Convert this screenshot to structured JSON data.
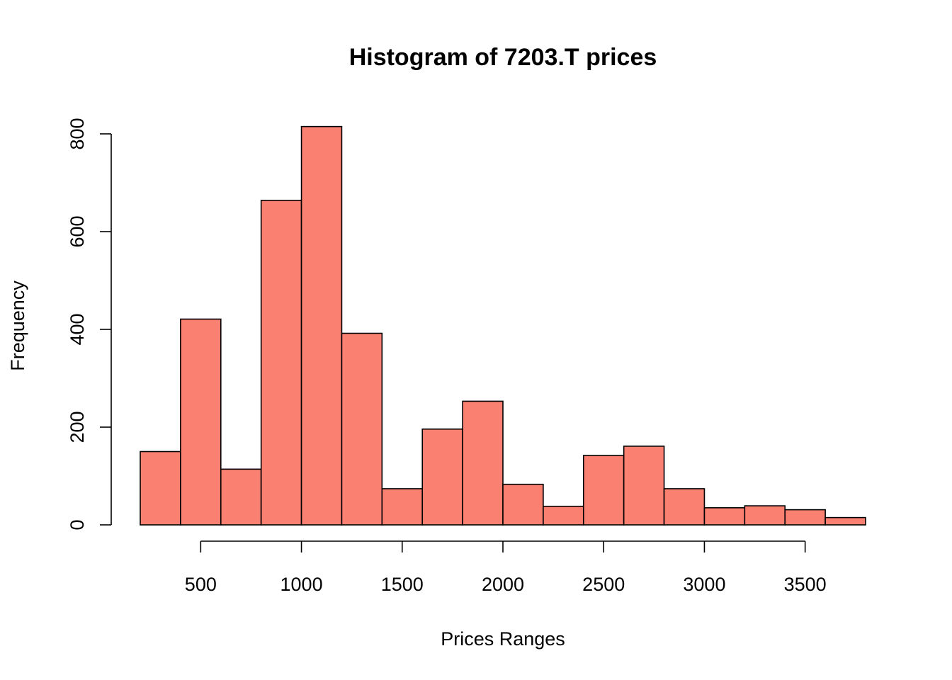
{
  "chart_data": {
    "type": "bar",
    "title": "Histogram of 7203.T prices",
    "xlabel": "Prices Ranges",
    "ylabel": "Frequency",
    "bin_edges": [
      200,
      400,
      600,
      800,
      1000,
      1200,
      1400,
      1600,
      1800,
      2000,
      2200,
      2400,
      2600,
      2800,
      3000,
      3200,
      3400,
      3600,
      3800
    ],
    "values": [
      150,
      421,
      114,
      664,
      815,
      392,
      74,
      196,
      253,
      83,
      38,
      142,
      161,
      74,
      35,
      39,
      31,
      15
    ],
    "xlim": [
      200,
      3800
    ],
    "ylim": [
      0,
      800
    ],
    "x_ticks": [
      500,
      1000,
      1500,
      2000,
      2500,
      3000,
      3500
    ],
    "y_ticks": [
      0,
      200,
      400,
      600,
      800
    ],
    "grid": false,
    "bar_color": "#FA8072",
    "edge_color": "#000000"
  }
}
